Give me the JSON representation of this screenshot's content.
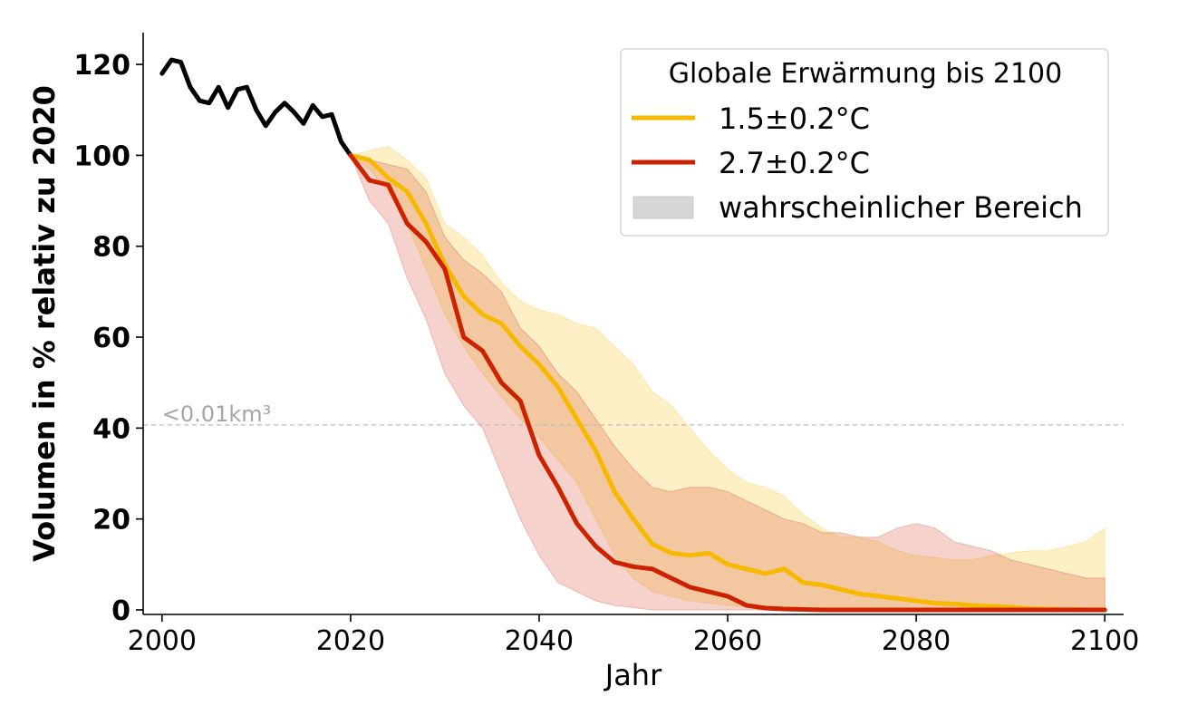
{
  "chart_data": {
    "type": "line",
    "xlabel": "Jahr",
    "ylabel": "Volumen in % relativ zu 2020",
    "xlim": [
      1998,
      2102
    ],
    "ylim": [
      -1,
      127
    ],
    "x_ticks": [
      2000,
      2020,
      2040,
      2060,
      2080,
      2100
    ],
    "y_ticks": [
      0,
      20,
      40,
      60,
      80,
      100,
      120
    ],
    "grid": false,
    "reference_line": {
      "y": 40.7,
      "label": "<0.01km³",
      "color": "#bbbbbb"
    },
    "legend": {
      "title": "Globale Erwärmung bis 2100",
      "position": "top-right",
      "entries": [
        {
          "label": "1.5±0.2°C",
          "color": "#f6b900"
        },
        {
          "label": "2.7±0.2°C",
          "color": "#cc2200"
        },
        {
          "label": "wahrscheinlicher Bereich",
          "color": "#d6d6d6"
        }
      ]
    },
    "series": [
      {
        "color": "#000000",
        "x": [
          2000,
          2001,
          2002,
          2003,
          2004,
          2005,
          2006,
          2007,
          2008,
          2009,
          2010,
          2011,
          2012,
          2013,
          2014,
          2015,
          2016,
          2017,
          2018,
          2019,
          2020
        ],
        "y": [
          118,
          121,
          120.5,
          115,
          112,
          111.5,
          115,
          110.5,
          114.5,
          115,
          110,
          106.5,
          109.5,
          111.5,
          109.5,
          107,
          111,
          108.5,
          109,
          103,
          100
        ]
      },
      {
        "name": "1.5±0.2°C",
        "color": "#f6b900",
        "x": [
          2020,
          2022,
          2024,
          2026,
          2028,
          2030,
          2032,
          2034,
          2036,
          2038,
          2040,
          2042,
          2044,
          2046,
          2048,
          2050,
          2052,
          2054,
          2056,
          2058,
          2060,
          2062,
          2064,
          2066,
          2068,
          2070,
          2072,
          2074,
          2076,
          2078,
          2080,
          2082,
          2084,
          2086,
          2088,
          2090,
          2092,
          2094,
          2096,
          2098,
          2100
        ],
        "y": [
          100,
          99,
          95,
          92,
          85,
          76,
          69,
          65,
          63,
          58,
          54,
          49,
          42,
          35,
          26,
          20,
          14.5,
          12.5,
          12,
          12.5,
          10,
          9,
          8,
          9,
          6,
          5.5,
          4.5,
          3.5,
          3,
          2.5,
          2,
          1.5,
          1.3,
          1,
          0.8,
          0.6,
          0.3,
          0.2,
          0.1,
          0,
          0
        ],
        "band_upper": [
          100,
          101,
          102,
          99,
          95,
          85,
          82,
          78,
          72,
          68,
          66,
          65,
          63,
          62,
          58,
          54,
          48,
          45,
          40,
          35,
          31,
          28,
          27,
          25,
          21,
          18,
          16,
          16,
          15,
          13,
          12,
          11.5,
          11,
          11,
          12,
          12.5,
          13,
          13,
          14,
          15,
          18
        ],
        "band_lower": [
          100,
          97,
          92,
          85,
          75,
          65,
          58,
          52,
          47,
          42,
          38,
          33,
          28,
          20,
          12,
          7,
          4,
          3,
          2,
          1.5,
          1,
          0.5,
          0.2,
          0,
          0,
          0,
          0,
          0,
          0,
          0,
          0,
          0,
          0,
          0,
          0,
          0,
          0,
          0,
          0,
          0,
          0
        ]
      },
      {
        "name": "2.7±0.2°C",
        "color": "#cc2200",
        "x": [
          2020,
          2022,
          2024,
          2026,
          2028,
          2030,
          2032,
          2034,
          2036,
          2038,
          2040,
          2042,
          2044,
          2046,
          2048,
          2050,
          2052,
          2054,
          2056,
          2058,
          2060,
          2062,
          2064,
          2066,
          2068,
          2070,
          2072,
          2074,
          2076,
          2078,
          2080,
          2082,
          2084,
          2086,
          2088,
          2090,
          2092,
          2094,
          2096,
          2098,
          2100
        ],
        "y": [
          100,
          94.5,
          93.5,
          85,
          81,
          75,
          60,
          57,
          50,
          46,
          34,
          27,
          19,
          14,
          10.5,
          9.5,
          9,
          7,
          5,
          4,
          3,
          1,
          0.4,
          0.2,
          0.1,
          0,
          0,
          0,
          0,
          0,
          0,
          0,
          0,
          0,
          0,
          0,
          0,
          0,
          0,
          0,
          0
        ],
        "band_upper": [
          100,
          99,
          98,
          97,
          92,
          82,
          77,
          74,
          70,
          62,
          58,
          52,
          48,
          42,
          36,
          31,
          27,
          26,
          27,
          27,
          26,
          24,
          22,
          20,
          19,
          17,
          17,
          16,
          16,
          18,
          19,
          18,
          15,
          14,
          13,
          11,
          10,
          9,
          8,
          7,
          7
        ],
        "band_lower": [
          100,
          90,
          85,
          73,
          64,
          52,
          45,
          40,
          30,
          20,
          12,
          6,
          4,
          2,
          1,
          0.5,
          0,
          0,
          0,
          0,
          0,
          0,
          0,
          0,
          0,
          0,
          0,
          0,
          0,
          0,
          0,
          0,
          0,
          0,
          0,
          0,
          0,
          0,
          0,
          0,
          0
        ]
      }
    ]
  }
}
